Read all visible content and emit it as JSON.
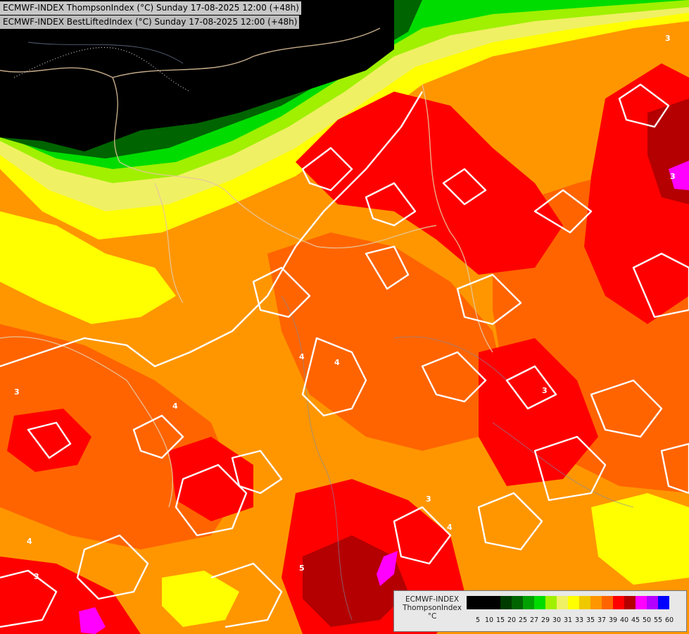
{
  "header": {
    "line1": "ECMWF-INDEX ThompsonIndex (°C) Sunday 17-08-2025 12:00 (+48h)",
    "line2": "ECMWF-INDEX BestLiftedIndex (°C) Sunday 17-08-2025 12:00 (+48h)"
  },
  "legend": {
    "title_line1": "ECMWF-INDEX",
    "title_line2": "ThompsonIndex",
    "title_line3": "°C",
    "bins": [
      {
        "label": "5",
        "color": "#000000"
      },
      {
        "label": "10",
        "color": "#000000"
      },
      {
        "label": "15",
        "color": "#000000"
      },
      {
        "label": "20",
        "color": "#003c00"
      },
      {
        "label": "25",
        "color": "#006400"
      },
      {
        "label": "27",
        "color": "#00a000"
      },
      {
        "label": "29",
        "color": "#00dc00"
      },
      {
        "label": "30",
        "color": "#a0f000"
      },
      {
        "label": "31",
        "color": "#f0f064"
      },
      {
        "label": "33",
        "color": "#ffff00"
      },
      {
        "label": "35",
        "color": "#f0c800"
      },
      {
        "label": "37",
        "color": "#ff9600"
      },
      {
        "label": "39",
        "color": "#ff6400"
      },
      {
        "label": "40",
        "color": "#ff0000"
      },
      {
        "label": "45",
        "color": "#b40000"
      },
      {
        "label": "50",
        "color": "#ff00ff"
      },
      {
        "label": "55",
        "color": "#b400ff"
      },
      {
        "label": "60",
        "color": "#0000ff"
      }
    ]
  },
  "contour_labels": [
    "3",
    "4",
    "5"
  ]
}
